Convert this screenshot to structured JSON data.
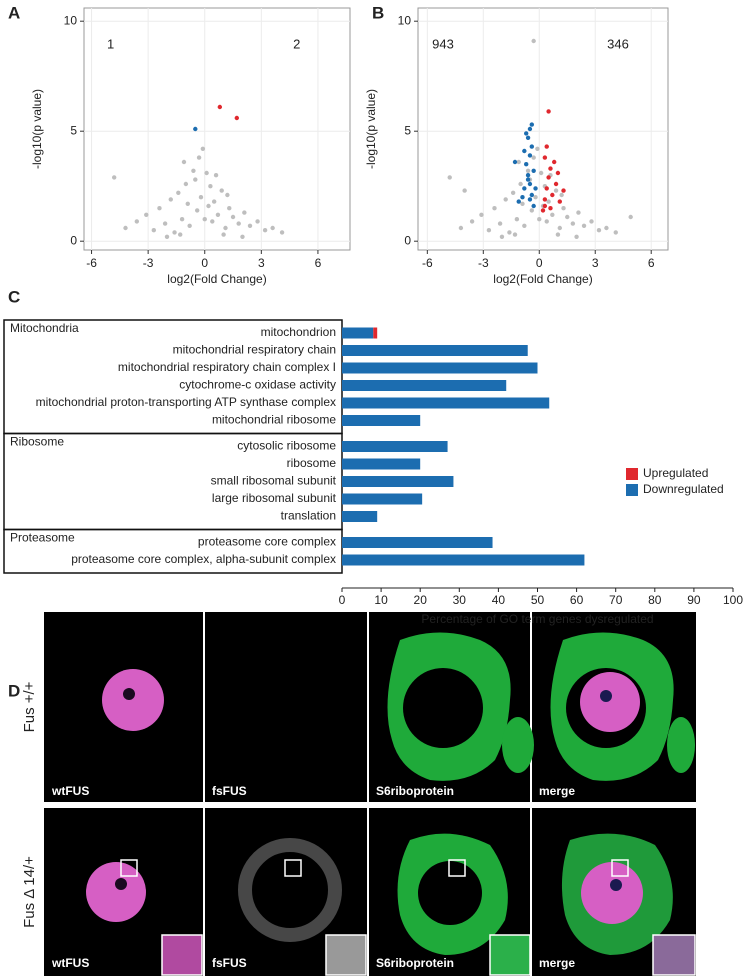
{
  "panel_labels": [
    "A",
    "B",
    "C",
    "D"
  ],
  "chart_data": [
    {
      "type": "scatter",
      "xlabel": "log2(Fold Change)",
      "ylabel": "-log10(p value)",
      "xlim": [
        -6.4,
        7.7
      ],
      "ylim": [
        -0.4,
        10.6
      ],
      "xticks": [
        -6,
        -3,
        0,
        3,
        6
      ],
      "yticks": [
        0,
        5,
        10
      ],
      "grid": true,
      "annotations": [
        {
          "text": "1",
          "color": "#1c6db0"
        },
        {
          "text": "2",
          "color": "#e0282e"
        }
      ],
      "series": [
        {
          "color": "#bebebe",
          "x": [
            -4.8,
            -4.2,
            -3.6,
            -3.1,
            -2.7,
            -2.4,
            -2.1,
            -1.8,
            -1.6,
            -1.4,
            -1.2,
            -1.0,
            -0.8,
            -0.6,
            -0.4,
            -0.3,
            -0.2,
            -0.1,
            0.1,
            0.2,
            0.3,
            0.4,
            0.5,
            0.7,
            0.9,
            1.1,
            1.3,
            1.5,
            1.8,
            2.1,
            2.4,
            2.8,
            3.2,
            3.6,
            4.1,
            -1.3,
            -0.9,
            0.6,
            1.0,
            -0.5,
            0.0,
            -2.0,
            2.0,
            -1.1,
            1.2
          ],
          "y": [
            2.9,
            0.6,
            0.9,
            1.2,
            0.5,
            1.5,
            0.8,
            1.9,
            0.4,
            2.2,
            1.0,
            2.6,
            0.7,
            3.2,
            1.4,
            3.8,
            2.0,
            4.2,
            3.1,
            1.6,
            2.5,
            0.9,
            1.8,
            1.2,
            2.3,
            0.6,
            1.5,
            1.1,
            0.8,
            1.3,
            0.7,
            0.9,
            0.5,
            0.6,
            0.4,
            0.3,
            1.7,
            3.0,
            0.3,
            2.8,
            1.0,
            0.2,
            0.2,
            3.6,
            2.1
          ]
        },
        {
          "color": "#1c6db0",
          "x": [
            -0.5
          ],
          "y": [
            5.1
          ]
        },
        {
          "color": "#e0282e",
          "x": [
            0.8,
            1.7
          ],
          "y": [
            6.1,
            5.6
          ]
        }
      ]
    },
    {
      "type": "scatter",
      "xlabel": "log2(Fold Change)",
      "ylabel": "-log10(p value)",
      "xlim": [
        -6.5,
        6.9
      ],
      "ylim": [
        -0.4,
        10.6
      ],
      "xticks": [
        -6,
        -3,
        0,
        3,
        6
      ],
      "yticks": [
        0,
        5,
        10
      ],
      "grid": true,
      "annotations": [
        {
          "text": "943",
          "color": "#1c6db0"
        },
        {
          "text": "346",
          "color": "#e0282e"
        }
      ],
      "series": [
        {
          "color": "#bebebe",
          "x": [
            -4.8,
            -4.2,
            -3.6,
            -3.1,
            -2.7,
            -2.4,
            -2.1,
            -1.8,
            -1.6,
            -1.4,
            -1.2,
            -1.0,
            -0.8,
            -0.6,
            -0.4,
            -0.3,
            -0.2,
            -0.1,
            0.1,
            0.2,
            0.3,
            0.4,
            0.5,
            0.7,
            0.9,
            1.1,
            1.3,
            1.5,
            1.8,
            2.1,
            2.4,
            2.8,
            3.2,
            3.6,
            4.1,
            -1.3,
            -0.9,
            0.6,
            1.0,
            -0.5,
            0.0,
            -2.0,
            2.0,
            -1.1,
            1.2,
            -0.3,
            -4.0,
            4.9
          ],
          "y": [
            2.9,
            0.6,
            0.9,
            1.2,
            0.5,
            1.5,
            0.8,
            1.9,
            0.4,
            2.2,
            1.0,
            2.6,
            0.7,
            3.2,
            1.4,
            3.8,
            2.0,
            4.2,
            3.1,
            1.6,
            2.5,
            0.9,
            1.8,
            1.2,
            2.3,
            0.6,
            1.5,
            1.1,
            0.8,
            1.3,
            0.7,
            0.9,
            0.5,
            0.6,
            0.4,
            0.3,
            1.7,
            3.0,
            0.3,
            2.8,
            1.0,
            0.2,
            0.2,
            3.6,
            2.1,
            9.1,
            2.3,
            1.1
          ]
        },
        {
          "color": "#1c6db0",
          "x": [
            -0.3,
            -0.4,
            -0.5,
            -0.6,
            -0.7,
            -0.5,
            -0.4,
            -0.8,
            -0.6,
            -0.3,
            -0.9,
            -0.5,
            -0.7,
            -0.4,
            -1.1,
            -0.6,
            -0.2,
            -0.5,
            -1.3,
            -0.8
          ],
          "y": [
            1.6,
            2.1,
            2.6,
            3.0,
            3.5,
            3.9,
            4.3,
            2.4,
            4.7,
            3.2,
            2.0,
            5.1,
            4.9,
            5.3,
            1.8,
            2.8,
            2.4,
            1.9,
            3.6,
            4.1
          ]
        },
        {
          "color": "#e0282e",
          "x": [
            0.2,
            0.3,
            0.4,
            0.5,
            0.6,
            0.3,
            0.7,
            0.9,
            0.4,
            1.1,
            0.5,
            0.8,
            1.3,
            0.3,
            0.6,
            1.0
          ],
          "y": [
            1.4,
            1.9,
            2.4,
            2.9,
            3.3,
            3.8,
            2.1,
            2.6,
            4.3,
            1.8,
            5.9,
            3.6,
            2.3,
            1.6,
            1.5,
            3.1
          ]
        }
      ]
    },
    {
      "type": "bar",
      "orientation": "horizontal",
      "stacked": true,
      "xlabel": "Percentage of GO term genes dysregulated",
      "xlim": [
        0,
        100
      ],
      "xticks": [
        0,
        10,
        20,
        30,
        40,
        50,
        60,
        70,
        80,
        90,
        100
      ],
      "legend": "right",
      "groups": [
        {
          "label": "Mitochondria",
          "categories": [
            "mitochondrion",
            "mitochondrial respiratory chain",
            "mitochondrial respiratory chain complex I",
            "cytochrome-c oxidase activity",
            "mitochondrial proton-transporting ATP synthase complex",
            "mitochondrial ribosome"
          ]
        },
        {
          "label": "Ribosome",
          "categories": [
            "cytosolic ribosome",
            "ribosome",
            "small ribosomal subunit",
            "large ribosomal subunit",
            "translation"
          ]
        },
        {
          "label": "Proteasome",
          "categories": [
            "proteasome core complex",
            "proteasome core complex, alpha-subunit complex"
          ]
        }
      ],
      "series": [
        {
          "name": "Upregulated",
          "color": "#e0282e",
          "values": [
            1,
            0,
            0,
            0,
            0,
            0,
            0,
            0,
            0,
            0,
            0,
            0,
            0
          ]
        },
        {
          "name": "Downregulated",
          "color": "#1c6db0",
          "values": [
            8,
            47.5,
            50,
            42,
            53,
            20,
            27,
            20,
            28.5,
            20.5,
            9,
            38.5,
            62
          ]
        }
      ]
    }
  ],
  "image_panel": {
    "row_labels": [
      "Fus +/+",
      "Fus Δ 14/+"
    ],
    "channels": [
      "wtFUS",
      "fsFUS",
      "S6riboprotein",
      "merge"
    ]
  }
}
